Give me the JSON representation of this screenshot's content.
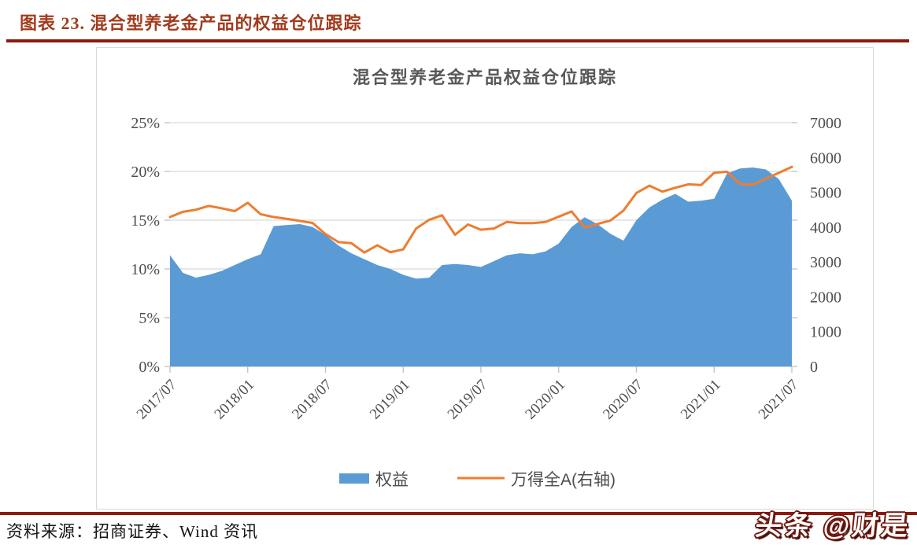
{
  "header": {
    "title": "图表 23. 混合型养老金产品的权益仓位跟踪"
  },
  "footer": {
    "source": "资料来源：招商证券、Wind 资讯"
  },
  "watermark": {
    "text": "头条 @财是"
  },
  "colors": {
    "caption_red": "#A13C1E",
    "rule_red": "#8B1A10",
    "title_gray": "#595959",
    "axis_text": "#4d4d4d",
    "gridline": "#D9D9D9",
    "axis_line": "#BFBFBF",
    "area_blue": "#5B9BD5",
    "line_orange": "#ED7D31"
  },
  "chart_data": {
    "type": "area",
    "title": "混合型养老金产品权益仓位跟踪",
    "legend_position": "bottom",
    "grid": true,
    "x": [
      "2017/07",
      "2017/08",
      "2017/09",
      "2017/10",
      "2017/11",
      "2017/12",
      "2018/01",
      "2018/02",
      "2018/03",
      "2018/04",
      "2018/05",
      "2018/06",
      "2018/07",
      "2018/08",
      "2018/09",
      "2018/10",
      "2018/11",
      "2018/12",
      "2019/01",
      "2019/02",
      "2019/03",
      "2019/04",
      "2019/05",
      "2019/06",
      "2019/07",
      "2019/08",
      "2019/09",
      "2019/10",
      "2019/11",
      "2019/12",
      "2020/01",
      "2020/02",
      "2020/03",
      "2020/04",
      "2020/05",
      "2020/06",
      "2020/07",
      "2020/08",
      "2020/09",
      "2020/10",
      "2020/11",
      "2020/12",
      "2021/01",
      "2021/02",
      "2021/03",
      "2021/04",
      "2021/05",
      "2021/06",
      "2021/07"
    ],
    "x_ticks": [
      "2017/07",
      "2018/01",
      "2018/07",
      "2019/01",
      "2019/07",
      "2020/01",
      "2020/07",
      "2021/01",
      "2021/07"
    ],
    "left_axis": {
      "min": 0,
      "max": 25,
      "tick_values": [
        0,
        5,
        10,
        15,
        20,
        25
      ],
      "tick_labels": [
        "0%",
        "5%",
        "10%",
        "15%",
        "20%",
        "25%"
      ]
    },
    "right_axis": {
      "min": 0,
      "max": 7000,
      "tick_values": [
        0,
        1000,
        2000,
        3000,
        4000,
        5000,
        6000,
        7000
      ],
      "tick_labels": [
        "0",
        "1000",
        "2000",
        "3000",
        "4000",
        "5000",
        "6000",
        "7000"
      ]
    },
    "series": [
      {
        "name": "权益",
        "type": "area",
        "axis": "left",
        "color": "#5B9BD5",
        "unit": "%",
        "values": [
          11.4,
          9.6,
          9.1,
          9.4,
          9.8,
          10.4,
          11.0,
          11.5,
          14.4,
          14.5,
          14.6,
          14.3,
          13.5,
          12.4,
          11.6,
          11.0,
          10.4,
          10.0,
          9.4,
          9.0,
          9.1,
          10.4,
          10.5,
          10.4,
          10.2,
          10.8,
          11.4,
          11.6,
          11.5,
          11.8,
          12.6,
          14.3,
          15.3,
          14.6,
          13.6,
          12.9,
          15.0,
          16.3,
          17.1,
          17.7,
          16.9,
          17.0,
          17.2,
          19.8,
          20.3,
          20.4,
          20.2,
          19.2,
          17.0
        ]
      },
      {
        "name": "万得全A(右轴)",
        "type": "line",
        "axis": "right",
        "color": "#ED7D31",
        "unit": "index points",
        "values": [
          4290,
          4440,
          4500,
          4610,
          4540,
          4460,
          4700,
          4370,
          4290,
          4240,
          4180,
          4120,
          3800,
          3570,
          3540,
          3270,
          3480,
          3280,
          3360,
          3960,
          4210,
          4340,
          3780,
          4075,
          3925,
          3960,
          4150,
          4115,
          4115,
          4150,
          4300,
          4450,
          3990,
          4090,
          4190,
          4475,
          4980,
          5190,
          5020,
          5130,
          5230,
          5210,
          5560,
          5590,
          5240,
          5220,
          5390,
          5560,
          5730
        ]
      }
    ]
  }
}
